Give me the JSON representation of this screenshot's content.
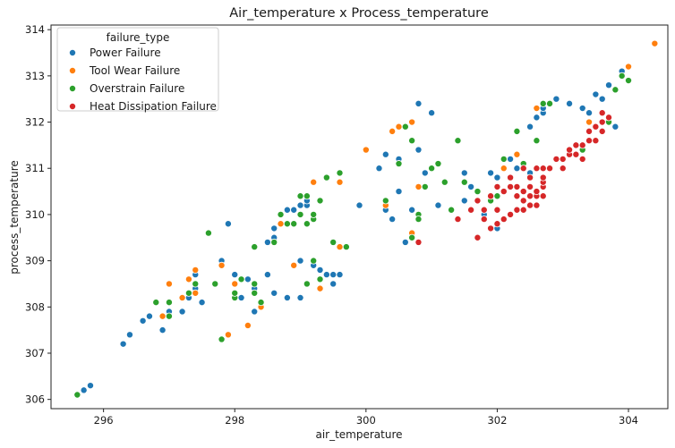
{
  "chart_data": {
    "type": "scatter",
    "title": "Air_temperature x Process_temperature",
    "xlabel": "air_temperature",
    "ylabel": "process_temperature",
    "xlim": [
      295.2,
      304.6
    ],
    "ylim": [
      305.8,
      314.1
    ],
    "xticks": [
      296,
      298,
      300,
      302,
      304
    ],
    "yticks": [
      306,
      307,
      308,
      309,
      310,
      311,
      312,
      313,
      314
    ],
    "legend": {
      "title": "failure_type",
      "placement": "top-left",
      "entries": [
        "Power Failure",
        "Tool Wear Failure",
        "Overstrain Failure",
        "Heat Dissipation Failure"
      ]
    },
    "grid": false,
    "series": [
      {
        "name": "Power Failure",
        "color": "#1f77b4",
        "points": [
          [
            295.7,
            306.2
          ],
          [
            295.8,
            306.3
          ],
          [
            296.3,
            307.2
          ],
          [
            296.4,
            307.4
          ],
          [
            296.6,
            307.7
          ],
          [
            296.7,
            307.8
          ],
          [
            296.9,
            307.5
          ],
          [
            297.0,
            307.9
          ],
          [
            297.2,
            307.9
          ],
          [
            297.3,
            308.2
          ],
          [
            297.4,
            308.4
          ],
          [
            297.4,
            308.7
          ],
          [
            297.5,
            308.1
          ],
          [
            297.8,
            309.0
          ],
          [
            297.9,
            309.8
          ],
          [
            298.0,
            308.7
          ],
          [
            298.1,
            308.2
          ],
          [
            298.2,
            308.6
          ],
          [
            298.3,
            307.9
          ],
          [
            298.3,
            308.4
          ],
          [
            298.4,
            308.1
          ],
          [
            298.5,
            308.7
          ],
          [
            298.5,
            309.4
          ],
          [
            298.6,
            309.5
          ],
          [
            298.6,
            309.7
          ],
          [
            298.6,
            308.3
          ],
          [
            298.8,
            308.2
          ],
          [
            298.8,
            310.1
          ],
          [
            298.9,
            310.1
          ],
          [
            299.0,
            310.2
          ],
          [
            299.0,
            309.0
          ],
          [
            299.0,
            308.2
          ],
          [
            299.1,
            310.2
          ],
          [
            299.1,
            310.3
          ],
          [
            299.2,
            308.9
          ],
          [
            299.3,
            308.8
          ],
          [
            299.4,
            308.7
          ],
          [
            299.5,
            308.5
          ],
          [
            299.5,
            308.7
          ],
          [
            299.6,
            308.7
          ],
          [
            299.9,
            310.2
          ],
          [
            300.2,
            311.0
          ],
          [
            300.3,
            311.3
          ],
          [
            300.4,
            309.9
          ],
          [
            300.5,
            310.5
          ],
          [
            300.5,
            311.2
          ],
          [
            300.6,
            309.4
          ],
          [
            300.7,
            310.1
          ],
          [
            300.8,
            312.4
          ],
          [
            300.8,
            311.4
          ],
          [
            300.9,
            310.9
          ],
          [
            301.0,
            312.2
          ],
          [
            301.1,
            310.2
          ],
          [
            301.2,
            310.7
          ],
          [
            301.5,
            310.9
          ],
          [
            301.6,
            310.6
          ],
          [
            301.8,
            310.0
          ],
          [
            301.9,
            310.9
          ],
          [
            302.0,
            310.8
          ],
          [
            302.0,
            309.7
          ],
          [
            302.1,
            311.0
          ],
          [
            302.1,
            311.2
          ],
          [
            302.2,
            311.2
          ],
          [
            302.4,
            311.1
          ],
          [
            302.5,
            311.9
          ],
          [
            302.6,
            312.1
          ],
          [
            302.7,
            312.2
          ],
          [
            302.7,
            312.3
          ],
          [
            302.9,
            312.5
          ],
          [
            303.1,
            312.4
          ],
          [
            303.3,
            312.3
          ],
          [
            303.4,
            312.2
          ],
          [
            303.5,
            312.6
          ],
          [
            303.6,
            312.5
          ],
          [
            303.7,
            312.8
          ],
          [
            303.9,
            313.1
          ],
          [
            304.0,
            313.2
          ],
          [
            303.6,
            312.0
          ],
          [
            303.8,
            311.9
          ],
          [
            301.5,
            310.3
          ],
          [
            300.3,
            310.1
          ],
          [
            302.3,
            311.0
          ],
          [
            302.5,
            310.9
          ]
        ]
      },
      {
        "name": "Tool Wear Failure",
        "color": "#ff7f0e",
        "points": [
          [
            296.9,
            307.8
          ],
          [
            297.0,
            308.5
          ],
          [
            297.2,
            308.2
          ],
          [
            297.3,
            308.6
          ],
          [
            297.4,
            308.8
          ],
          [
            297.4,
            308.3
          ],
          [
            297.9,
            307.4
          ],
          [
            297.8,
            308.9
          ],
          [
            298.0,
            308.5
          ],
          [
            298.2,
            307.6
          ],
          [
            298.4,
            308.0
          ],
          [
            298.7,
            309.8
          ],
          [
            298.9,
            308.9
          ],
          [
            299.2,
            310.7
          ],
          [
            299.3,
            308.4
          ],
          [
            299.6,
            309.3
          ],
          [
            299.6,
            310.7
          ],
          [
            300.0,
            311.4
          ],
          [
            300.3,
            310.2
          ],
          [
            300.4,
            311.8
          ],
          [
            300.5,
            311.9
          ],
          [
            300.7,
            312.0
          ],
          [
            300.7,
            309.6
          ],
          [
            300.8,
            310.6
          ],
          [
            302.1,
            311.0
          ],
          [
            302.3,
            311.3
          ],
          [
            302.6,
            312.3
          ],
          [
            302.7,
            310.8
          ],
          [
            303.4,
            312.0
          ],
          [
            303.5,
            311.9
          ],
          [
            303.9,
            313.0
          ],
          [
            304.0,
            313.2
          ],
          [
            304.4,
            313.7
          ]
        ]
      },
      {
        "name": "Overstrain Failure",
        "color": "#2ca02c",
        "points": [
          [
            295.6,
            306.1
          ],
          [
            296.8,
            308.1
          ],
          [
            297.0,
            307.8
          ],
          [
            297.0,
            308.1
          ],
          [
            297.3,
            308.3
          ],
          [
            297.4,
            308.5
          ],
          [
            297.6,
            309.6
          ],
          [
            297.7,
            308.5
          ],
          [
            297.8,
            307.3
          ],
          [
            298.0,
            308.2
          ],
          [
            298.0,
            308.3
          ],
          [
            298.1,
            308.6
          ],
          [
            298.3,
            308.5
          ],
          [
            298.3,
            308.3
          ],
          [
            298.3,
            309.3
          ],
          [
            298.4,
            308.1
          ],
          [
            298.6,
            309.4
          ],
          [
            298.7,
            310.0
          ],
          [
            298.8,
            309.8
          ],
          [
            298.9,
            309.8
          ],
          [
            299.0,
            310.0
          ],
          [
            299.0,
            310.4
          ],
          [
            299.1,
            309.8
          ],
          [
            299.1,
            310.4
          ],
          [
            299.2,
            309.9
          ],
          [
            299.2,
            310.0
          ],
          [
            299.3,
            310.3
          ],
          [
            299.4,
            310.8
          ],
          [
            299.5,
            309.4
          ],
          [
            299.6,
            310.9
          ],
          [
            299.7,
            309.3
          ],
          [
            299.2,
            309.0
          ],
          [
            299.3,
            308.6
          ],
          [
            299.1,
            308.5
          ],
          [
            300.3,
            310.3
          ],
          [
            300.5,
            311.1
          ],
          [
            300.6,
            311.9
          ],
          [
            300.7,
            311.6
          ],
          [
            300.7,
            309.5
          ],
          [
            300.8,
            310.0
          ],
          [
            300.8,
            309.9
          ],
          [
            300.9,
            310.6
          ],
          [
            301.0,
            311.0
          ],
          [
            301.1,
            311.1
          ],
          [
            301.2,
            310.7
          ],
          [
            301.3,
            310.1
          ],
          [
            301.4,
            311.6
          ],
          [
            301.5,
            310.7
          ],
          [
            301.7,
            310.5
          ],
          [
            301.9,
            310.3
          ],
          [
            302.0,
            310.4
          ],
          [
            302.1,
            310.5
          ],
          [
            302.1,
            311.2
          ],
          [
            302.3,
            311.8
          ],
          [
            302.4,
            311.1
          ],
          [
            302.6,
            311.6
          ],
          [
            302.7,
            312.4
          ],
          [
            302.8,
            312.4
          ],
          [
            303.7,
            312.0
          ],
          [
            303.8,
            312.7
          ],
          [
            303.9,
            313.0
          ],
          [
            304.0,
            312.9
          ],
          [
            303.3,
            311.4
          ]
        ]
      },
      {
        "name": "Heat Dissipation Failure",
        "color": "#d62728",
        "points": [
          [
            300.8,
            309.4
          ],
          [
            301.4,
            309.9
          ],
          [
            301.6,
            310.1
          ],
          [
            301.7,
            310.3
          ],
          [
            301.7,
            309.5
          ],
          [
            301.8,
            309.9
          ],
          [
            301.8,
            310.1
          ],
          [
            301.9,
            310.4
          ],
          [
            301.9,
            309.7
          ],
          [
            302.0,
            309.8
          ],
          [
            302.0,
            310.1
          ],
          [
            302.0,
            310.6
          ],
          [
            302.1,
            310.5
          ],
          [
            302.1,
            309.9
          ],
          [
            302.2,
            310.6
          ],
          [
            302.2,
            310.8
          ],
          [
            302.2,
            310.0
          ],
          [
            302.3,
            310.1
          ],
          [
            302.3,
            310.4
          ],
          [
            302.3,
            310.6
          ],
          [
            302.4,
            310.1
          ],
          [
            302.4,
            310.3
          ],
          [
            302.4,
            310.5
          ],
          [
            302.4,
            311.0
          ],
          [
            302.5,
            310.2
          ],
          [
            302.5,
            310.4
          ],
          [
            302.5,
            310.6
          ],
          [
            302.5,
            310.8
          ],
          [
            302.6,
            310.2
          ],
          [
            302.6,
            310.4
          ],
          [
            302.6,
            310.5
          ],
          [
            302.6,
            311.0
          ],
          [
            302.7,
            310.4
          ],
          [
            302.7,
            310.6
          ],
          [
            302.7,
            310.7
          ],
          [
            302.7,
            310.8
          ],
          [
            302.7,
            311.0
          ],
          [
            302.8,
            311.0
          ],
          [
            302.9,
            311.2
          ],
          [
            303.0,
            311.2
          ],
          [
            303.1,
            311.3
          ],
          [
            303.2,
            311.3
          ],
          [
            303.3,
            311.5
          ],
          [
            303.3,
            311.2
          ],
          [
            303.4,
            311.8
          ],
          [
            303.4,
            311.6
          ],
          [
            303.5,
            311.6
          ],
          [
            303.5,
            311.9
          ],
          [
            303.6,
            311.8
          ],
          [
            303.6,
            312.0
          ],
          [
            303.6,
            312.2
          ],
          [
            303.7,
            312.1
          ],
          [
            303.1,
            311.4
          ],
          [
            303.2,
            311.5
          ],
          [
            303.0,
            311.0
          ]
        ]
      }
    ]
  }
}
